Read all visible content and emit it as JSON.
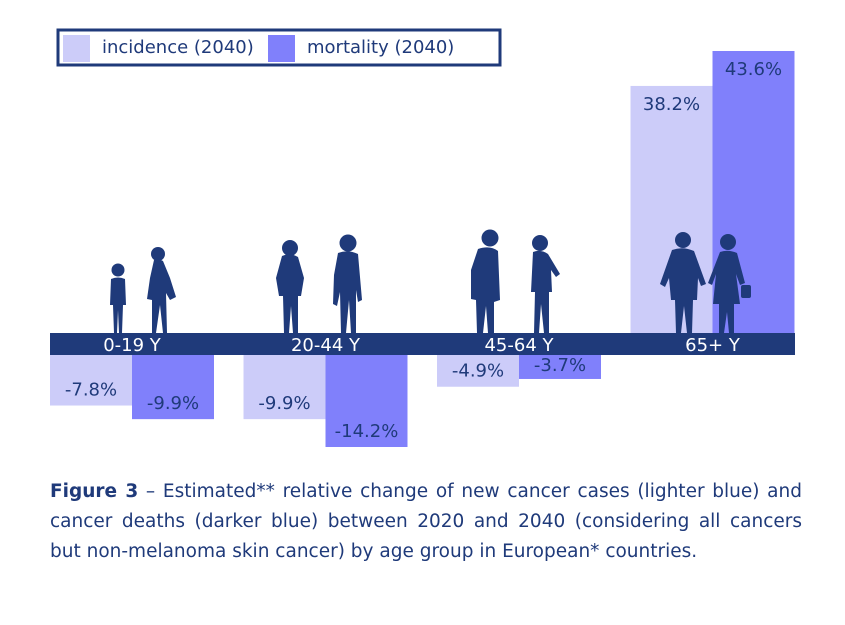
{
  "chart_data": {
    "type": "bar",
    "categories": [
      "0-19 Y",
      "20-44 Y",
      "45-64 Y",
      "65+ Y"
    ],
    "series": [
      {
        "name": "incidence (2040)",
        "values": [
          -7.8,
          -9.9,
          -4.9,
          38.2
        ],
        "labels": [
          "-7.8%",
          "-9.9%",
          "-4.9%",
          "38.2%"
        ]
      },
      {
        "name": "mortality (2040)",
        "values": [
          -9.9,
          -14.2,
          -3.7,
          43.6
        ],
        "labels": [
          "-9.9%",
          "-14.2%",
          "-3.7%",
          "43.6%"
        ]
      }
    ],
    "colors": {
      "incidence": "#ccccf9",
      "mortality": "#8080fb",
      "axis_band": "#1f3a7a",
      "text": "#1f3a7a",
      "silhouette": "#1f3a7a"
    },
    "legend_position": "top-left",
    "grid": false,
    "ylim": [
      -15,
      45
    ],
    "icons": [
      "child-silhouette-icon",
      "young-adult-silhouette-icon",
      "middle-aged-silhouette-icon",
      "elderly-couple-silhouette-icon"
    ]
  },
  "caption": {
    "label": "Figure 3",
    "text": " – Estimated** relative change of new cancer cases (lighter blue) and cancer deaths  (darker blue) between 2020 and 2040 (considering all cancers but non-melanoma skin cancer) by age group in European* countries."
  }
}
